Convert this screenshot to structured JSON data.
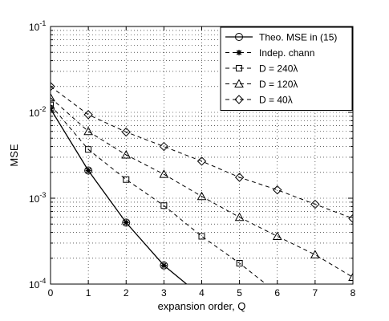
{
  "chart_data": {
    "type": "line",
    "xlabel": "expansion order, Q",
    "ylabel": "MSE",
    "xlim": [
      0,
      8
    ],
    "ylim": [
      0.0001,
      0.1
    ],
    "yscale": "log",
    "grid": true,
    "legend_position": "top-right",
    "x_ticks": [
      "0",
      "1",
      "2",
      "3",
      "4",
      "5",
      "6",
      "7",
      "8"
    ],
    "y_ticks": [
      {
        "value": 0.1,
        "base": "10",
        "exp": "-1"
      },
      {
        "value": 0.01,
        "base": "10",
        "exp": "-2"
      },
      {
        "value": 0.001,
        "base": "10",
        "exp": "-3"
      },
      {
        "value": 0.0001,
        "base": "10",
        "exp": "-4"
      }
    ],
    "series": [
      {
        "name": "Theo. MSE in (15)",
        "style": "solid",
        "marker": "circle",
        "x": [
          0,
          1,
          2,
          3,
          3.6
        ],
        "y": [
          0.011,
          0.0021,
          0.00052,
          0.000165,
          0.0001
        ]
      },
      {
        "name": "Indep. chann",
        "style": "dashed",
        "marker": "asterisk",
        "x": [
          0,
          1,
          2,
          3
        ],
        "y": [
          0.011,
          0.0021,
          0.00052,
          0.000165
        ]
      },
      {
        "name": "D = 240λ",
        "style": "dashed",
        "marker": "square",
        "x": [
          0,
          1,
          2,
          3,
          4,
          5,
          5.7
        ],
        "y": [
          0.0122,
          0.0037,
          0.00165,
          0.00082,
          0.00036,
          0.000175,
          0.0001
        ]
      },
      {
        "name": "D = 120λ",
        "style": "dashed",
        "marker": "triangle",
        "x": [
          0,
          1,
          2,
          3,
          4,
          5,
          6,
          7,
          8
        ],
        "y": [
          0.0148,
          0.006,
          0.0032,
          0.0019,
          0.00105,
          0.0006,
          0.00036,
          0.00022,
          0.00012
        ]
      },
      {
        "name": "D = 40λ",
        "style": "dashed",
        "marker": "diamond",
        "x": [
          0,
          1,
          2,
          3,
          4,
          5,
          6,
          7,
          8
        ],
        "y": [
          0.02,
          0.0094,
          0.0059,
          0.004,
          0.0027,
          0.00175,
          0.00125,
          0.00085,
          0.00058
        ]
      }
    ]
  }
}
